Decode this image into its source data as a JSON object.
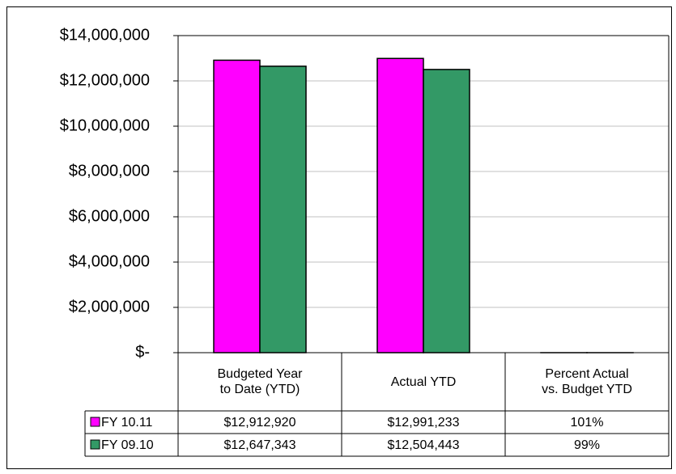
{
  "chart_data": {
    "type": "bar",
    "categories": [
      "Budgeted Year to Date (YTD)",
      "Actual YTD",
      "Percent Actual vs. Budget YTD"
    ],
    "series": [
      {
        "name": "FY 10.11",
        "color": "#ff00ff",
        "values": [
          12912920,
          12991233,
          101
        ],
        "value_labels": [
          "$12,912,920",
          "$12,991,233",
          "101%"
        ]
      },
      {
        "name": "FY 09.10",
        "color": "#339966",
        "values": [
          12647343,
          12504443,
          99
        ],
        "value_labels": [
          "$12,647,343",
          "$12,504,443",
          "99%"
        ]
      }
    ],
    "ylim": [
      0,
      14000000
    ],
    "yticks": [
      {
        "value": 0,
        "label": "$-"
      },
      {
        "value": 2000000,
        "label": "$2,000,000"
      },
      {
        "value": 4000000,
        "label": "$4,000,000"
      },
      {
        "value": 6000000,
        "label": "$6,000,000"
      },
      {
        "value": 8000000,
        "label": "$8,000,000"
      },
      {
        "value": 10000000,
        "label": "$10,000,000"
      },
      {
        "value": 12000000,
        "label": "$12,000,000"
      },
      {
        "value": 14000000,
        "label": "$14,000,000"
      }
    ],
    "grid": true
  }
}
